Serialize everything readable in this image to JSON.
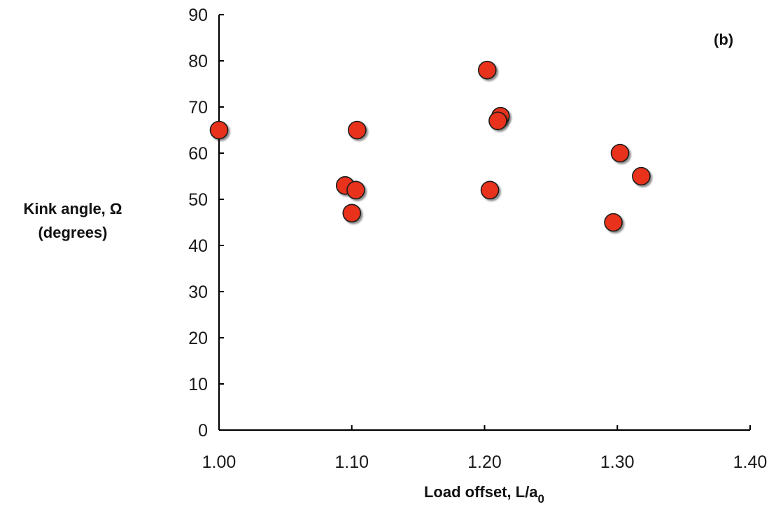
{
  "chart_data": {
    "type": "scatter",
    "panel_label": "(b)",
    "xlabel_main": "Load offset, L/a",
    "xlabel_sub": "0",
    "ylabel_lines": [
      "Kink angle, Ω",
      "(degrees)"
    ],
    "xlim": [
      1.0,
      1.4
    ],
    "ylim": [
      0,
      90
    ],
    "x_ticks": [
      1.0,
      1.1,
      1.2,
      1.3,
      1.4
    ],
    "x_tick_labels": [
      "1.00",
      "1.10",
      "1.20",
      "1.30",
      "1.40"
    ],
    "y_ticks": [
      0,
      10,
      20,
      30,
      40,
      50,
      60,
      70,
      80,
      90
    ],
    "y_tick_labels": [
      "0",
      "10",
      "20",
      "30",
      "40",
      "50",
      "60",
      "70",
      "80",
      "90"
    ],
    "grid": false,
    "marker_color": "#e8321e",
    "points": [
      {
        "x": 1.0,
        "y": 65
      },
      {
        "x": 1.095,
        "y": 53
      },
      {
        "x": 1.103,
        "y": 52
      },
      {
        "x": 1.1,
        "y": 47
      },
      {
        "x": 1.104,
        "y": 65
      },
      {
        "x": 1.202,
        "y": 78
      },
      {
        "x": 1.204,
        "y": 52
      },
      {
        "x": 1.212,
        "y": 68
      },
      {
        "x": 1.21,
        "y": 67
      },
      {
        "x": 1.297,
        "y": 45
      },
      {
        "x": 1.302,
        "y": 60
      },
      {
        "x": 1.318,
        "y": 55
      }
    ]
  }
}
